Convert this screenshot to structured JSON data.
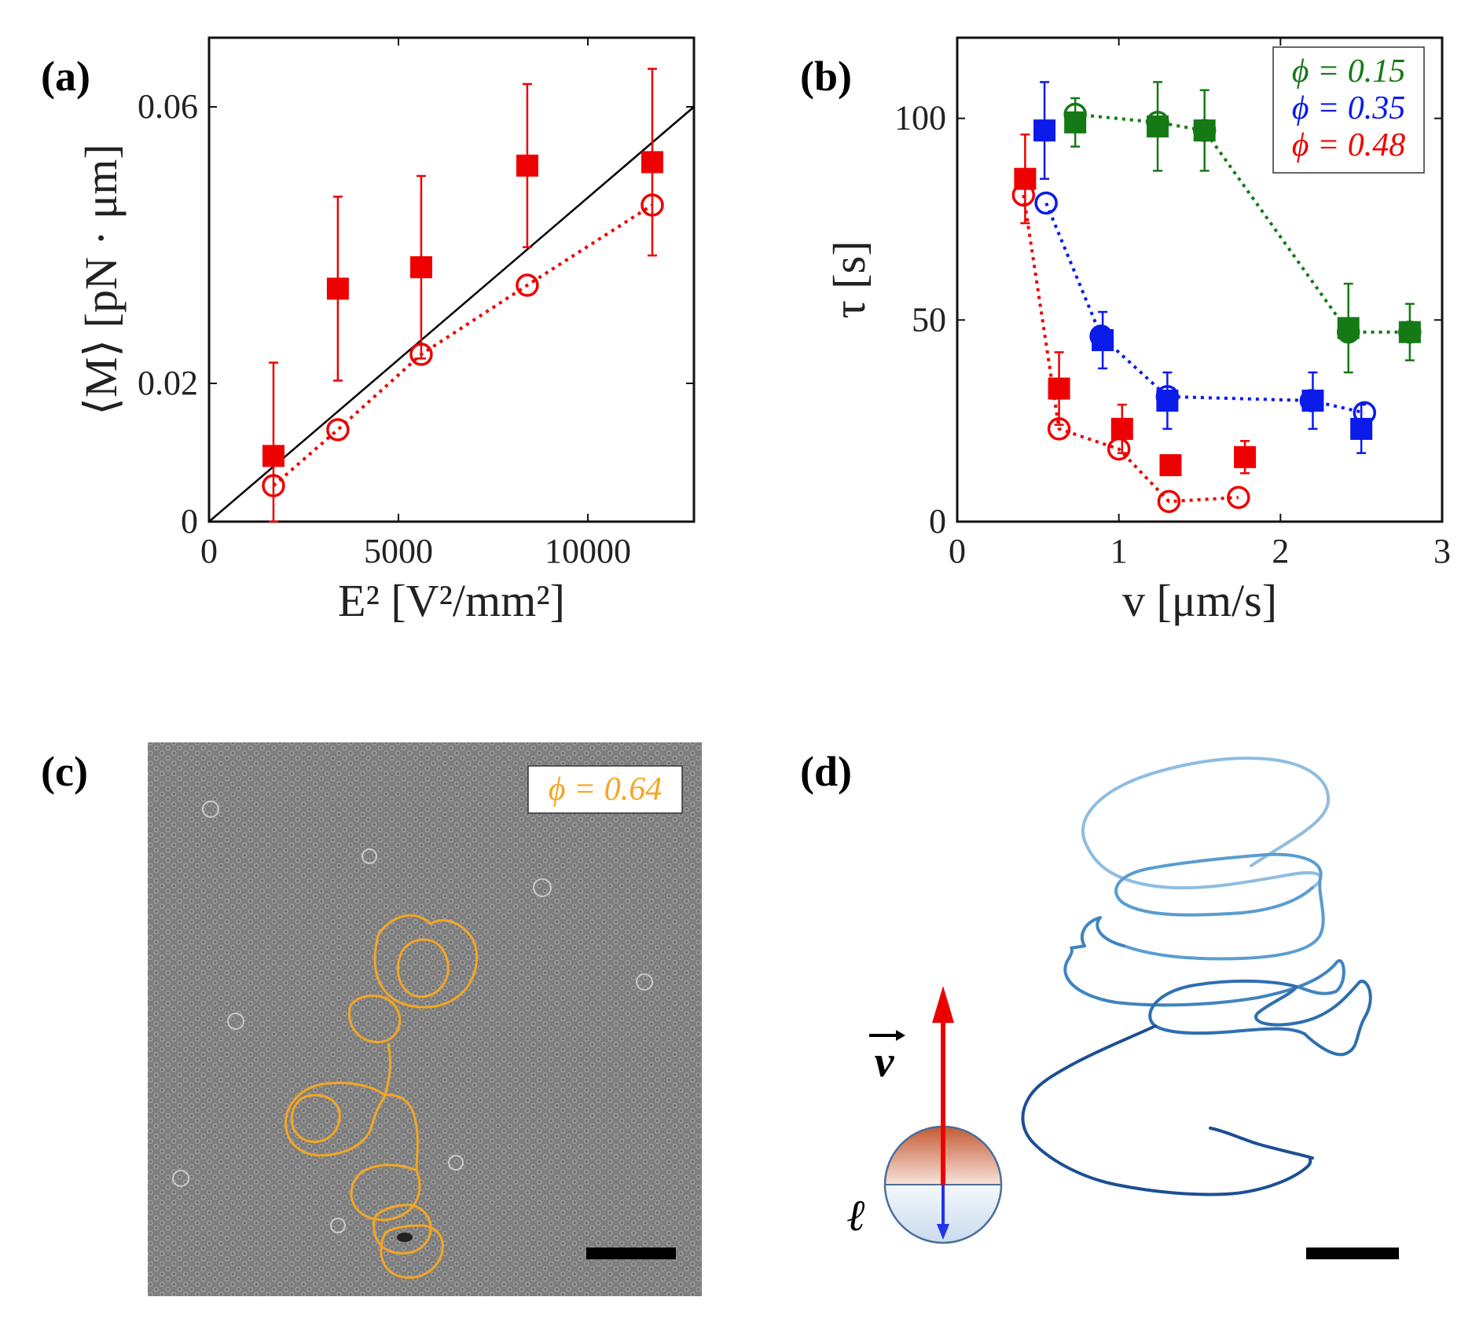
{
  "panels": {
    "a": "(a)",
    "b": "(b)",
    "c": "(c)",
    "d": "(d)"
  },
  "colors": {
    "red": "#ee0000",
    "green": "#157a15",
    "blue": "#0a1bea",
    "orange": "#f5a623",
    "trail": "#2f6fb0"
  },
  "chart_data": [
    {
      "id": "a",
      "type": "scatter",
      "xlabel": "E² [V²/mm²]",
      "ylabel": "⟨M⟩ [pN · μm]",
      "xlim": [
        0,
        12800
      ],
      "ylim": [
        0,
        0.07
      ],
      "xticks": [
        0,
        5000,
        10000
      ],
      "yticks": [
        0,
        0.02,
        0.06
      ],
      "xtick_labels": [
        "0",
        "5000",
        "10000"
      ],
      "ytick_labels": [
        "0",
        "0.02",
        "0.06"
      ],
      "series": [
        {
          "name": "filled squares",
          "marker": "square",
          "color": "#ee0000",
          "x": [
            1700,
            3400,
            5600,
            8400,
            11700
          ],
          "y": [
            0.0095,
            0.0337,
            0.0368,
            0.0515,
            0.052
          ],
          "err": [
            0.0135,
            0.0133,
            0.0132,
            0.0118,
            0.0135
          ]
        },
        {
          "name": "open circles",
          "marker": "circle",
          "color": "#ee0000",
          "line": "dotted",
          "x": [
            1700,
            3400,
            5600,
            8400,
            11700
          ],
          "y": [
            0.0052,
            0.0133,
            0.0242,
            0.0342,
            0.0458
          ]
        },
        {
          "name": "linear fit",
          "line": "solid",
          "color": "#000000",
          "x": [
            0,
            12800
          ],
          "y": [
            0,
            0.06
          ]
        }
      ]
    },
    {
      "id": "b",
      "type": "scatter",
      "xlabel": "v [μm/s]",
      "ylabel": "τ [s]",
      "xlim": [
        0,
        3
      ],
      "ylim": [
        0,
        120
      ],
      "xticks": [
        0,
        1,
        2,
        3
      ],
      "yticks": [
        0,
        50,
        100
      ],
      "xtick_labels": [
        "0",
        "1",
        "2",
        "3"
      ],
      "ytick_labels": [
        "0",
        "50",
        "100"
      ],
      "legend": [
        "ϕ = 0.15",
        "ϕ = 0.35",
        "ϕ = 0.48"
      ],
      "series": [
        {
          "name": "ϕ = 0.15",
          "color": "#157a15",
          "squares": {
            "x": [
              0.73,
              1.24,
              1.53,
              2.42,
              2.8
            ],
            "y": [
              99,
              98,
              97,
              48,
              47
            ],
            "err": [
              6,
              11,
              10,
              11,
              7
            ]
          },
          "circles": {
            "x": [
              0.73,
              1.24,
              1.53,
              2.42,
              2.8
            ],
            "y": [
              101,
              99,
              97,
              47,
              47
            ],
            "filled": [
              false,
              false,
              true,
              true,
              true
            ]
          }
        },
        {
          "name": "ϕ = 0.35",
          "color": "#0a1bea",
          "squares": {
            "x": [
              0.54,
              0.9,
              1.3,
              2.2,
              2.5
            ],
            "y": [
              97,
              45,
              30,
              30,
              23
            ],
            "err": [
              12,
              7,
              7,
              7,
              6
            ]
          },
          "circles": {
            "x": [
              0.55,
              0.89,
              1.3,
              2.19,
              2.52
            ],
            "y": [
              79,
              46,
              31,
              30,
              27
            ],
            "filled": [
              false,
              true,
              false,
              true,
              false
            ]
          }
        },
        {
          "name": "ϕ = 0.48",
          "color": "#ee0000",
          "squares": {
            "x": [
              0.42,
              0.63,
              1.02,
              1.32,
              1.78
            ],
            "y": [
              85,
              33,
              23,
              14,
              16
            ],
            "err": [
              11,
              9,
              6,
              2,
              4
            ]
          },
          "circles": {
            "x": [
              0.41,
              0.63,
              1.0,
              1.31,
              1.74
            ],
            "y": [
              81,
              23,
              18,
              5,
              6
            ],
            "filled": [
              false,
              false,
              false,
              false,
              false
            ]
          }
        }
      ]
    }
  ],
  "panel_c": {
    "label": "ϕ = 0.64"
  },
  "panel_d": {
    "velocity_label": "v",
    "length_label": "ℓ"
  }
}
